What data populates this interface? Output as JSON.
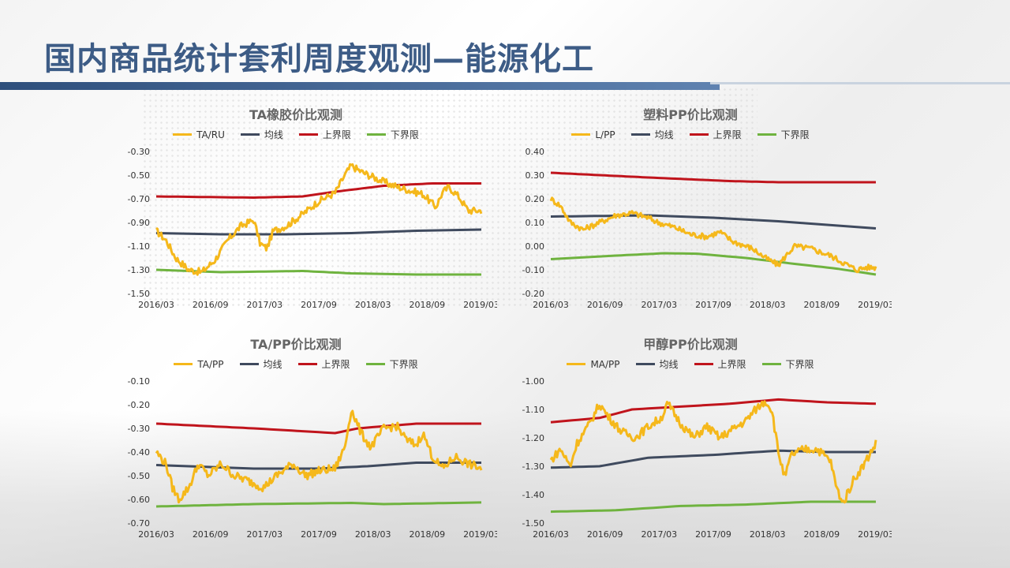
{
  "page_title": "国内商品统计套利周度观测—能源化工",
  "colors": {
    "ratio": "#f5b81b",
    "mean": "#3f4a5e",
    "upper": "#c0141c",
    "lower": "#6fb33f"
  },
  "chart_data": [
    {
      "type": "line",
      "title": "TA橡胶价比观测",
      "x_ticks": [
        "2016/03",
        "2016/09",
        "2017/03",
        "2017/09",
        "2018/03",
        "2018/09",
        "2019/03"
      ],
      "y_ticks": [
        "-0.30",
        "-0.50",
        "-0.70",
        "-0.90",
        "-1.10",
        "-1.30",
        "-1.50"
      ],
      "ylim": [
        -1.5,
        -0.3
      ],
      "grid": false,
      "legend_position": "top",
      "series": [
        {
          "name": "TA/RU",
          "color_key": "ratio",
          "noise": 0.03,
          "points": [
            [
              0,
              -0.97
            ],
            [
              0.03,
              -1.05
            ],
            [
              0.06,
              -1.2
            ],
            [
              0.1,
              -1.3
            ],
            [
              0.14,
              -1.32
            ],
            [
              0.18,
              -1.22
            ],
            [
              0.22,
              -1.05
            ],
            [
              0.26,
              -0.93
            ],
            [
              0.3,
              -0.88
            ],
            [
              0.32,
              -1.08
            ],
            [
              0.34,
              -1.12
            ],
            [
              0.36,
              -0.97
            ],
            [
              0.4,
              -0.93
            ],
            [
              0.45,
              -0.83
            ],
            [
              0.5,
              -0.72
            ],
            [
              0.55,
              -0.65
            ],
            [
              0.58,
              -0.5
            ],
            [
              0.6,
              -0.42
            ],
            [
              0.63,
              -0.47
            ],
            [
              0.67,
              -0.52
            ],
            [
              0.72,
              -0.58
            ],
            [
              0.78,
              -0.63
            ],
            [
              0.82,
              -0.66
            ],
            [
              0.86,
              -0.77
            ],
            [
              0.88,
              -0.65
            ],
            [
              0.9,
              -0.6
            ],
            [
              0.93,
              -0.68
            ],
            [
              0.96,
              -0.8
            ],
            [
              1,
              -0.8
            ]
          ]
        },
        {
          "name": "均线",
          "color_key": "mean",
          "noise": 0,
          "points": [
            [
              0,
              -0.99
            ],
            [
              0.2,
              -1.0
            ],
            [
              0.4,
              -1.0
            ],
            [
              0.6,
              -0.99
            ],
            [
              0.8,
              -0.97
            ],
            [
              1,
              -0.96
            ]
          ]
        },
        {
          "name": "上界限",
          "color_key": "upper",
          "noise": 0,
          "points": [
            [
              0,
              -0.68
            ],
            [
              0.3,
              -0.69
            ],
            [
              0.45,
              -0.68
            ],
            [
              0.55,
              -0.64
            ],
            [
              0.7,
              -0.59
            ],
            [
              0.85,
              -0.57
            ],
            [
              1,
              -0.57
            ]
          ]
        },
        {
          "name": "下界限",
          "color_key": "lower",
          "noise": 0,
          "points": [
            [
              0,
              -1.3
            ],
            [
              0.2,
              -1.32
            ],
            [
              0.45,
              -1.31
            ],
            [
              0.6,
              -1.33
            ],
            [
              0.8,
              -1.34
            ],
            [
              1,
              -1.34
            ]
          ]
        }
      ]
    },
    {
      "type": "line",
      "title": "塑料PP价比观测",
      "x_ticks": [
        "2016/03",
        "2016/09",
        "2017/03",
        "2017/09",
        "2018/03",
        "2018/09",
        "2019/03"
      ],
      "y_ticks": [
        "0.40",
        "0.30",
        "0.20",
        "0.10",
        "0.00",
        "-0.10",
        "-0.20"
      ],
      "ylim": [
        -0.2,
        0.4
      ],
      "grid": false,
      "legend_position": "top",
      "series": [
        {
          "name": "L/PP",
          "color_key": "ratio",
          "noise": 0.012,
          "points": [
            [
              0,
              0.2
            ],
            [
              0.03,
              0.17
            ],
            [
              0.06,
              0.1
            ],
            [
              0.1,
              0.07
            ],
            [
              0.15,
              0.1
            ],
            [
              0.2,
              0.13
            ],
            [
              0.25,
              0.14
            ],
            [
              0.3,
              0.12
            ],
            [
              0.33,
              0.1
            ],
            [
              0.38,
              0.08
            ],
            [
              0.43,
              0.05
            ],
            [
              0.48,
              0.04
            ],
            [
              0.52,
              0.06
            ],
            [
              0.56,
              0.02
            ],
            [
              0.62,
              -0.01
            ],
            [
              0.66,
              -0.05
            ],
            [
              0.7,
              -0.08
            ],
            [
              0.73,
              -0.03
            ],
            [
              0.75,
              0.0
            ],
            [
              0.8,
              -0.01
            ],
            [
              0.86,
              -0.04
            ],
            [
              0.9,
              -0.07
            ],
            [
              0.94,
              -0.1
            ],
            [
              0.97,
              -0.09
            ],
            [
              1,
              -0.09
            ]
          ]
        },
        {
          "name": "均线",
          "color_key": "mean",
          "noise": 0,
          "points": [
            [
              0,
              0.125
            ],
            [
              0.3,
              0.13
            ],
            [
              0.5,
              0.12
            ],
            [
              0.7,
              0.105
            ],
            [
              0.85,
              0.09
            ],
            [
              1,
              0.075
            ]
          ]
        },
        {
          "name": "上界限",
          "color_key": "upper",
          "noise": 0,
          "points": [
            [
              0,
              0.31
            ],
            [
              0.3,
              0.29
            ],
            [
              0.55,
              0.275
            ],
            [
              0.7,
              0.27
            ],
            [
              0.85,
              0.27
            ],
            [
              1,
              0.27
            ]
          ]
        },
        {
          "name": "下界限",
          "color_key": "lower",
          "noise": 0,
          "points": [
            [
              0,
              -0.055
            ],
            [
              0.2,
              -0.04
            ],
            [
              0.35,
              -0.03
            ],
            [
              0.45,
              -0.032
            ],
            [
              0.6,
              -0.05
            ],
            [
              0.75,
              -0.075
            ],
            [
              0.88,
              -0.095
            ],
            [
              1,
              -0.12
            ]
          ]
        }
      ]
    },
    {
      "type": "line",
      "title": "TA/PP价比观测",
      "x_ticks": [
        "2016/03",
        "2016/09",
        "2017/03",
        "2017/09",
        "2018/03",
        "2018/09",
        "2019/03"
      ],
      "y_ticks": [
        "-0.10",
        "-0.20",
        "-0.30",
        "-0.40",
        "-0.50",
        "-0.60",
        "-0.70"
      ],
      "ylim": [
        -0.7,
        -0.1
      ],
      "grid": false,
      "legend_position": "top",
      "series": [
        {
          "name": "TA/PP",
          "color_key": "ratio",
          "noise": 0.018,
          "points": [
            [
              0,
              -0.4
            ],
            [
              0.03,
              -0.45
            ],
            [
              0.05,
              -0.55
            ],
            [
              0.07,
              -0.6
            ],
            [
              0.1,
              -0.55
            ],
            [
              0.13,
              -0.45
            ],
            [
              0.16,
              -0.5
            ],
            [
              0.2,
              -0.45
            ],
            [
              0.24,
              -0.5
            ],
            [
              0.28,
              -0.52
            ],
            [
              0.33,
              -0.55
            ],
            [
              0.37,
              -0.5
            ],
            [
              0.42,
              -0.45
            ],
            [
              0.46,
              -0.5
            ],
            [
              0.5,
              -0.48
            ],
            [
              0.55,
              -0.47
            ],
            [
              0.58,
              -0.38
            ],
            [
              0.6,
              -0.22
            ],
            [
              0.63,
              -0.32
            ],
            [
              0.66,
              -0.38
            ],
            [
              0.7,
              -0.3
            ],
            [
              0.74,
              -0.29
            ],
            [
              0.77,
              -0.35
            ],
            [
              0.8,
              -0.37
            ],
            [
              0.82,
              -0.32
            ],
            [
              0.85,
              -0.42
            ],
            [
              0.88,
              -0.47
            ],
            [
              0.92,
              -0.42
            ],
            [
              0.96,
              -0.45
            ],
            [
              1,
              -0.47
            ]
          ]
        },
        {
          "name": "均线",
          "color_key": "mean",
          "noise": 0,
          "points": [
            [
              0,
              -0.455
            ],
            [
              0.3,
              -0.47
            ],
            [
              0.5,
              -0.47
            ],
            [
              0.65,
              -0.46
            ],
            [
              0.8,
              -0.445
            ],
            [
              1,
              -0.445
            ]
          ]
        },
        {
          "name": "上界限",
          "color_key": "upper",
          "noise": 0,
          "points": [
            [
              0,
              -0.28
            ],
            [
              0.3,
              -0.3
            ],
            [
              0.55,
              -0.32
            ],
            [
              0.62,
              -0.3
            ],
            [
              0.8,
              -0.28
            ],
            [
              1,
              -0.28
            ]
          ]
        },
        {
          "name": "下界限",
          "color_key": "lower",
          "noise": 0,
          "points": [
            [
              0,
              -0.63
            ],
            [
              0.3,
              -0.62
            ],
            [
              0.6,
              -0.615
            ],
            [
              0.7,
              -0.62
            ],
            [
              1,
              -0.613
            ]
          ]
        }
      ]
    },
    {
      "type": "line",
      "title": "甲醇PP价比观测",
      "x_ticks": [
        "2016/03",
        "2016/09",
        "2017/03",
        "2017/09",
        "2018/03",
        "2018/09",
        "2019/03"
      ],
      "y_ticks": [
        "-1.00",
        "-1.10",
        "-1.20",
        "-1.30",
        "-1.40",
        "-1.50"
      ],
      "ylim": [
        -1.5,
        -1.0
      ],
      "grid": false,
      "legend_position": "top",
      "series": [
        {
          "name": "MA/PP",
          "color_key": "ratio",
          "noise": 0.015,
          "points": [
            [
              0,
              -1.28
            ],
            [
              0.03,
              -1.24
            ],
            [
              0.06,
              -1.3
            ],
            [
              0.08,
              -1.22
            ],
            [
              0.12,
              -1.15
            ],
            [
              0.15,
              -1.08
            ],
            [
              0.18,
              -1.13
            ],
            [
              0.22,
              -1.18
            ],
            [
              0.26,
              -1.2
            ],
            [
              0.3,
              -1.16
            ],
            [
              0.34,
              -1.13
            ],
            [
              0.36,
              -1.08
            ],
            [
              0.4,
              -1.15
            ],
            [
              0.44,
              -1.2
            ],
            [
              0.48,
              -1.16
            ],
            [
              0.52,
              -1.2
            ],
            [
              0.56,
              -1.17
            ],
            [
              0.6,
              -1.14
            ],
            [
              0.63,
              -1.1
            ],
            [
              0.66,
              -1.07
            ],
            [
              0.68,
              -1.1
            ],
            [
              0.7,
              -1.25
            ],
            [
              0.72,
              -1.34
            ],
            [
              0.74,
              -1.26
            ],
            [
              0.78,
              -1.24
            ],
            [
              0.82,
              -1.24
            ],
            [
              0.86,
              -1.28
            ],
            [
              0.88,
              -1.38
            ],
            [
              0.9,
              -1.43
            ],
            [
              0.93,
              -1.35
            ],
            [
              0.96,
              -1.3
            ],
            [
              1,
              -1.22
            ]
          ]
        },
        {
          "name": "均线",
          "color_key": "mean",
          "noise": 0,
          "points": [
            [
              0,
              -1.305
            ],
            [
              0.15,
              -1.3
            ],
            [
              0.3,
              -1.27
            ],
            [
              0.5,
              -1.26
            ],
            [
              0.7,
              -1.245
            ],
            [
              0.85,
              -1.25
            ],
            [
              1,
              -1.25
            ]
          ]
        },
        {
          "name": "上界限",
          "color_key": "upper",
          "noise": 0,
          "points": [
            [
              0,
              -1.145
            ],
            [
              0.15,
              -1.13
            ],
            [
              0.25,
              -1.1
            ],
            [
              0.4,
              -1.09
            ],
            [
              0.55,
              -1.08
            ],
            [
              0.7,
              -1.065
            ],
            [
              0.85,
              -1.075
            ],
            [
              1,
              -1.08
            ]
          ]
        },
        {
          "name": "下界限",
          "color_key": "lower",
          "noise": 0,
          "points": [
            [
              0,
              -1.46
            ],
            [
              0.2,
              -1.455
            ],
            [
              0.4,
              -1.44
            ],
            [
              0.6,
              -1.435
            ],
            [
              0.8,
              -1.425
            ],
            [
              1,
              -1.425
            ]
          ]
        }
      ]
    }
  ]
}
